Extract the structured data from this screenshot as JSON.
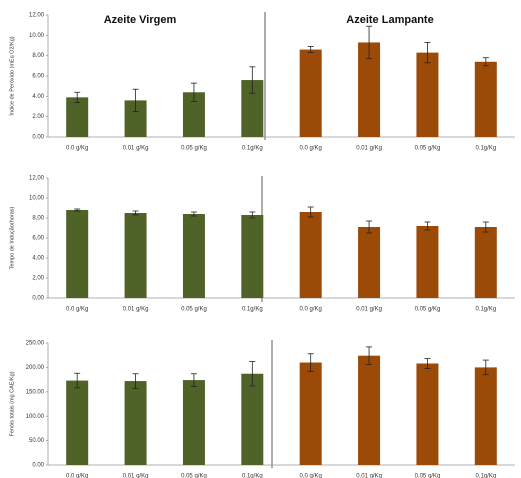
{
  "chart_data": [
    {
      "type": "bar",
      "ylabel": "Índice de Peróxido (mEq O2/Kg)",
      "annotations": [
        "Azeite Virgem",
        "Azeite Lampante"
      ],
      "categories": [
        "0.0 g/Kg",
        "0.01 g/Kg",
        "0.05 g/Kg",
        "0.1g/Kg",
        "0.0 g/Kg",
        "0.01 g/Kg",
        "0.05 g/Kg",
        "0.1g/Kg"
      ],
      "series": [
        {
          "color": "#4f6228",
          "values": [
            3.9,
            3.6,
            4.4,
            5.6,
            null,
            null,
            null,
            null
          ],
          "errors": [
            0.5,
            1.1,
            0.9,
            1.3,
            null,
            null,
            null,
            null
          ]
        },
        {
          "color": "#9c4a08",
          "values": [
            null,
            null,
            null,
            null,
            8.6,
            9.3,
            8.3,
            7.4
          ],
          "errors": [
            null,
            null,
            null,
            null,
            0.3,
            1.6,
            1.0,
            0.4
          ]
        }
      ],
      "ylim": [
        0,
        12
      ],
      "yticks": [
        {
          "value": 0,
          "label": "0.00"
        },
        {
          "value": 2,
          "label": "2.00"
        },
        {
          "value": 4,
          "label": "4.00"
        },
        {
          "value": 6,
          "label": "6.00"
        },
        {
          "value": 8,
          "label": "8.00"
        },
        {
          "value": 10,
          "label": "10.00"
        },
        {
          "value": 12,
          "label": "12.00"
        }
      ]
    },
    {
      "type": "bar",
      "ylabel": "Tempo de Indução(horas)",
      "categories": [
        "0.0 g/Kg",
        "0.01 g/Kg",
        "0.05 g/Kg",
        "0.1g/Kg",
        "0.0 g/Kg",
        "0.01 g/Kg",
        "0.05 g/Kg",
        "0.1g/Kg"
      ],
      "series": [
        {
          "color": "#4f6228",
          "values": [
            8.8,
            8.5,
            8.4,
            8.3,
            null,
            null,
            null,
            null
          ],
          "errors": [
            0.1,
            0.2,
            0.2,
            0.3,
            null,
            null,
            null,
            null
          ]
        },
        {
          "color": "#9c4a08",
          "values": [
            null,
            null,
            null,
            null,
            8.6,
            7.1,
            7.2,
            7.1
          ],
          "errors": [
            null,
            null,
            null,
            null,
            0.5,
            0.6,
            0.4,
            0.5
          ]
        }
      ],
      "ylim": [
        0,
        12
      ],
      "yticks": [
        {
          "value": 0,
          "label": "0,00"
        },
        {
          "value": 2,
          "label": "2,00"
        },
        {
          "value": 4,
          "label": "4,00"
        },
        {
          "value": 6,
          "label": "6,00"
        },
        {
          "value": 8,
          "label": "8,00"
        },
        {
          "value": 10,
          "label": "10,00"
        },
        {
          "value": 12,
          "label": "12,00"
        }
      ]
    },
    {
      "type": "bar",
      "ylabel": "Fenóis totais (mg CAE/Kg)",
      "categories": [
        "0.0 g/Kg",
        "0.01 g/Kg",
        "0.05 g/Kg",
        "0.1g/Kg",
        "0.0 g/Kg",
        "0.01 g/Kg",
        "0.05 g/Kg",
        "0.1g/Kg"
      ],
      "series": [
        {
          "color": "#4f6228",
          "values": [
            173,
            172,
            174,
            187,
            null,
            null,
            null,
            null
          ],
          "errors": [
            15,
            15,
            13,
            25,
            null,
            null,
            null,
            null
          ]
        },
        {
          "color": "#9c4a08",
          "values": [
            null,
            null,
            null,
            null,
            210,
            224,
            208,
            200
          ],
          "errors": [
            null,
            null,
            null,
            null,
            18,
            18,
            10,
            15
          ]
        }
      ],
      "ylim": [
        0,
        250
      ],
      "yticks": [
        {
          "value": 0,
          "label": "0.00"
        },
        {
          "value": 50,
          "label": "50.00"
        },
        {
          "value": 100,
          "label": "100.00"
        },
        {
          "value": 150,
          "label": "150.00"
        },
        {
          "value": 200,
          "label": "200.00"
        },
        {
          "value": 250,
          "label": "250.00"
        }
      ]
    }
  ]
}
